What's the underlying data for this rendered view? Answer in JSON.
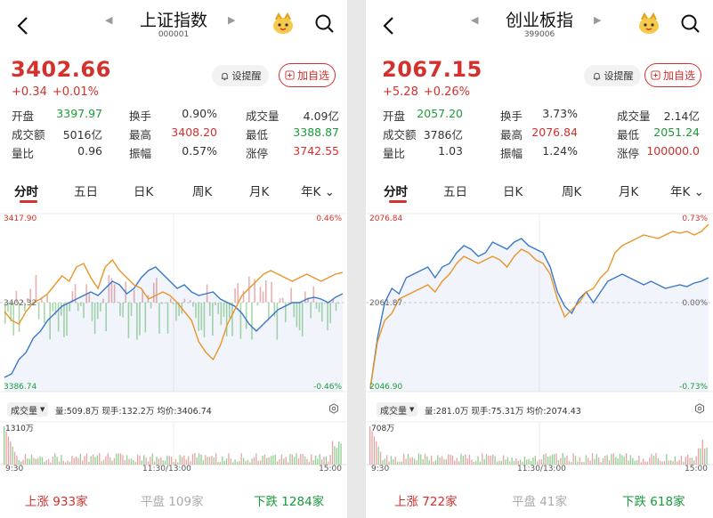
{
  "panels": [
    {
      "title": "上证指数",
      "code": "000001",
      "price": "3402.66",
      "change": "+0.34",
      "change_pct": "+0.01%",
      "remind_label": "设提醒",
      "fav_label": "加自选",
      "stats": [
        [
          {
            "label": "开盘",
            "value": "3397.97",
            "color": "green"
          },
          {
            "label": "换手",
            "value": "0.90%",
            "color": ""
          },
          {
            "label": "成交量",
            "value": "4.09亿",
            "color": ""
          }
        ],
        [
          {
            "label": "成交额",
            "value": "5016亿",
            "color": ""
          },
          {
            "label": "最高",
            "value": "3408.20",
            "color": "red"
          },
          {
            "label": "最低",
            "value": "3388.87",
            "color": "green"
          }
        ],
        [
          {
            "label": "量比",
            "value": "0.96",
            "color": ""
          },
          {
            "label": "振幅",
            "value": "0.57%",
            "color": ""
          },
          {
            "label": "涨停",
            "value": "3742.55",
            "color": "red"
          }
        ]
      ],
      "tabs": [
        "分时",
        "五日",
        "日K",
        "周K",
        "月K",
        "年K"
      ],
      "chart": {
        "high_label": "3417.90",
        "low_label": "3386.74",
        "mid_label": "3402.32",
        "pos_pct": "0.46%",
        "neg_pct": "-0.46%"
      },
      "vol_selector": "成交量",
      "vol_info": "量:509.8万  现手:132.2万  均价:3406.74",
      "vol_max": "1310万",
      "time_labels": [
        "9:30",
        "11:30/13:00",
        "15:00"
      ],
      "breadth": {
        "up_label": "上涨",
        "up": "933家",
        "flat_label": "平盘",
        "flat": "109家",
        "down_label": "下跌",
        "down": "1284家"
      }
    },
    {
      "title": "创业板指",
      "code": "399006",
      "price": "2067.15",
      "change": "+5.28",
      "change_pct": "+0.26%",
      "remind_label": "设提醒",
      "fav_label": "加自选",
      "stats": [
        [
          {
            "label": "开盘",
            "value": "2057.20",
            "color": "green"
          },
          {
            "label": "换手",
            "value": "3.73%",
            "color": ""
          },
          {
            "label": "成交量",
            "value": "2.14亿",
            "color": ""
          }
        ],
        [
          {
            "label": "成交额",
            "value": "3786亿",
            "color": ""
          },
          {
            "label": "最高",
            "value": "2076.84",
            "color": "red"
          },
          {
            "label": "最低",
            "value": "2051.24",
            "color": "green"
          }
        ],
        [
          {
            "label": "量比",
            "value": "1.03",
            "color": ""
          },
          {
            "label": "振幅",
            "value": "1.24%",
            "color": ""
          },
          {
            "label": "涨停",
            "value": "100000.0",
            "color": "red"
          }
        ]
      ],
      "tabs": [
        "分时",
        "五日",
        "日K",
        "周K",
        "月K",
        "年K"
      ],
      "chart": {
        "high_label": "2076.84",
        "low_label": "2046.90",
        "mid_label": "2061.87",
        "pos_pct": "0.73%",
        "neg_pct": "-0.73%",
        "zero_pct": "0.00%"
      },
      "vol_selector": "成交量",
      "vol_info": "量:281.0万  现手:75.31万  均价:2074.43",
      "vol_max": "708万",
      "time_labels": [
        "9:30",
        "11:30/13:00",
        "15:00"
      ],
      "breadth": {
        "up_label": "上涨",
        "up": "722家",
        "flat_label": "平盘",
        "flat": "41家",
        "down_label": "下跌",
        "down": "618家"
      }
    }
  ],
  "colors": {
    "red": "#d4302c",
    "green": "#1a9b3a",
    "price_line": "#3a78c9",
    "avg_line": "#e8952a"
  },
  "icons": {
    "back": "back-arrow-icon",
    "search": "search-icon",
    "mascot": "mascot-icon",
    "bell": "bell-icon",
    "plus": "plus-box-icon",
    "gear": "gear-icon"
  }
}
